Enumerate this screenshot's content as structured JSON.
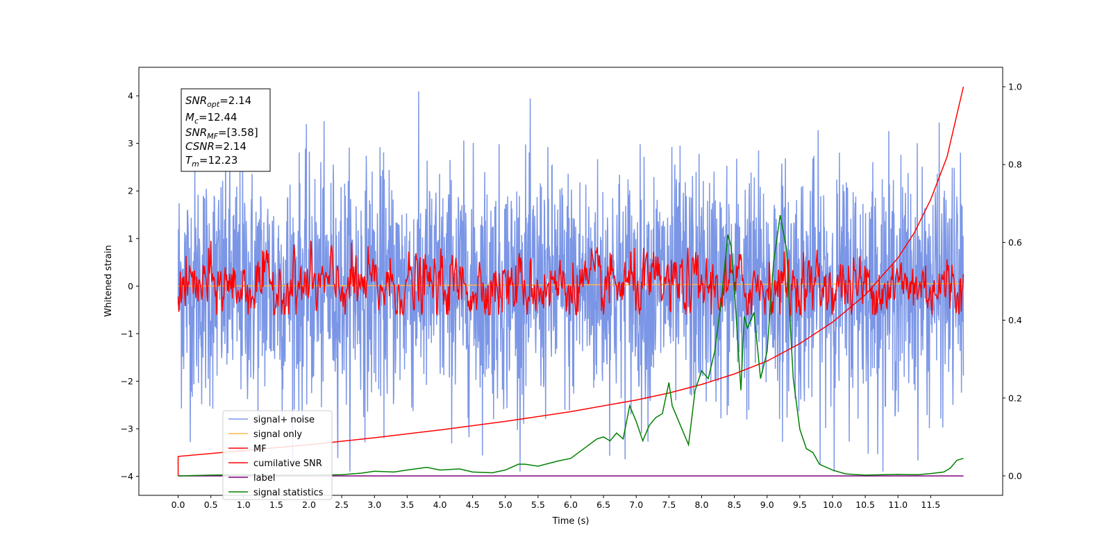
{
  "chart_data": {
    "type": "line",
    "xlabel": "Time (s)",
    "ylabel": "Whitened strain",
    "xlim": [
      -0.6,
      12.6
    ],
    "ylim": [
      -4.4,
      4.6
    ],
    "y2lim": [
      -0.05,
      1.05
    ],
    "xticks": [
      "0.0",
      "0.5",
      "1.0",
      "1.5",
      "2.0",
      "2.5",
      "3.0",
      "3.5",
      "4.0",
      "4.5",
      "5.0",
      "5.5",
      "6.0",
      "6.5",
      "7.0",
      "7.5",
      "8.0",
      "8.5",
      "9.0",
      "9.5",
      "10.0",
      "10.5",
      "11.0",
      "11.5"
    ],
    "yticks": [
      "4",
      "3",
      "2",
      "1",
      "0",
      "−1",
      "−2",
      "−3",
      "−4"
    ],
    "y2ticks": [
      "1.0",
      "0.8",
      "0.6",
      "0.4",
      "0.2",
      "0.0"
    ],
    "grid": false,
    "legend_position": "lower-left",
    "info_box": {
      "line1_main": "SNR",
      "line1_sub": "opt",
      "line1_rest": "=2.14",
      "line2_main": "M",
      "line2_sub": "c",
      "line2_rest": "=12.44",
      "line3_main": "SNR",
      "line3_sub": "MF",
      "line3_rest": "=[3.58]",
      "line4_main": "CSNR",
      "line4_rest": "=2.14",
      "line5_main": "T",
      "line5_sub": "m",
      "line5_rest": "=12.23"
    },
    "series": [
      {
        "name": "signal+ noise",
        "color": "#7b96e6",
        "axis": "left",
        "description_values": "whitened noise, amplitude roughly within -3.6..4.2 around 0"
      },
      {
        "name": "signal only",
        "color": "#ffb74d",
        "axis": "left",
        "x": [
          0,
          12
        ],
        "y": [
          0,
          0.05
        ]
      },
      {
        "name": "MF",
        "color": "#ff0000",
        "axis": "left",
        "description_values": "matched-filter output oscillating roughly within -0.6..0.95 around 0"
      },
      {
        "name": "cumilative SNR",
        "color": "#ff0000",
        "axis": "right",
        "x": [
          0,
          1,
          2,
          3,
          4,
          5,
          6,
          7,
          7.5,
          8,
          8.5,
          9,
          9.5,
          10,
          10.5,
          11,
          11.25,
          11.5,
          11.75,
          12
        ],
        "y": [
          0.05,
          0.065,
          0.08,
          0.098,
          0.118,
          0.14,
          0.165,
          0.195,
          0.213,
          0.235,
          0.262,
          0.295,
          0.34,
          0.395,
          0.465,
          0.56,
          0.625,
          0.71,
          0.82,
          1.0
        ]
      },
      {
        "name": "label",
        "color": "#800080",
        "axis": "right",
        "x": [
          0,
          12
        ],
        "y": [
          0,
          0
        ]
      },
      {
        "name": "signal statistics",
        "color": "#008000",
        "axis": "right",
        "x": [
          0,
          0.5,
          1,
          1.5,
          2,
          2.5,
          2.8,
          3,
          3.3,
          3.5,
          3.8,
          4,
          4.3,
          4.5,
          4.8,
          5,
          5.2,
          5.3,
          5.5,
          5.8,
          6,
          6.2,
          6.4,
          6.5,
          6.6,
          6.7,
          6.8,
          6.9,
          7,
          7.1,
          7.2,
          7.3,
          7.4,
          7.5,
          7.55,
          7.6,
          7.7,
          7.8,
          7.9,
          8,
          8.1,
          8.2,
          8.3,
          8.4,
          8.45,
          8.5,
          8.6,
          8.65,
          8.7,
          8.8,
          8.9,
          9,
          9.1,
          9.2,
          9.3,
          9.35,
          9.4,
          9.5,
          9.6,
          9.7,
          9.8,
          10,
          10.2,
          10.5,
          11,
          11.3,
          11.5,
          11.7,
          11.8,
          11.9,
          12
        ],
        "y": [
          0,
          0.002,
          0.003,
          0.002,
          0.002,
          0.003,
          0.007,
          0.012,
          0.01,
          0.015,
          0.022,
          0.015,
          0.018,
          0.01,
          0.008,
          0.015,
          0.03,
          0.03,
          0.025,
          0.038,
          0.045,
          0.07,
          0.095,
          0.1,
          0.09,
          0.11,
          0.095,
          0.18,
          0.14,
          0.09,
          0.13,
          0.15,
          0.16,
          0.24,
          0.18,
          0.16,
          0.12,
          0.08,
          0.22,
          0.27,
          0.25,
          0.32,
          0.45,
          0.62,
          0.59,
          0.48,
          0.22,
          0.41,
          0.38,
          0.42,
          0.25,
          0.32,
          0.55,
          0.67,
          0.58,
          0.4,
          0.25,
          0.12,
          0.07,
          0.06,
          0.03,
          0.015,
          0.005,
          0.002,
          0.004,
          0.003,
          0.006,
          0.01,
          0.02,
          0.04,
          0.045
        ]
      }
    ]
  }
}
